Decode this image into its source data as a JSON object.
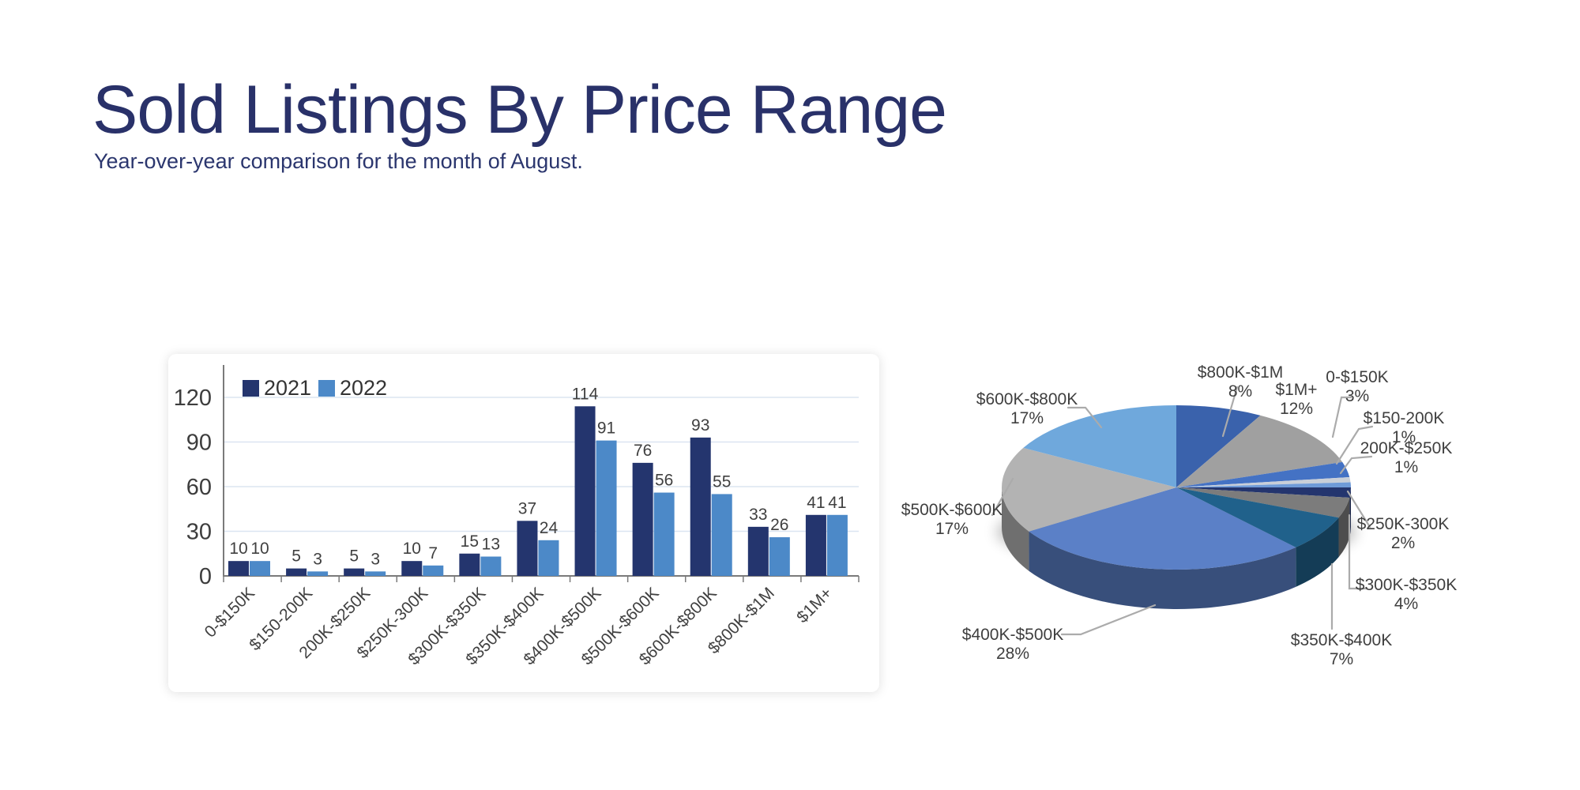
{
  "page": {
    "title": "Sold Listings By Price Range",
    "subtitle": "Year-over-year comparison for the month of August."
  },
  "colors": {
    "title": "#293169",
    "subtitle": "#2B366E",
    "axis": "#7A7A7A",
    "gridline": "#DBE5F1",
    "tick_label": "#3D3D3D",
    "value_label": "#404040",
    "legend_label": "#333333",
    "pie_label": "#3F3F3F",
    "leader_line": "#ABABAB",
    "series_2021": "#24356E",
    "series_2022": "#4C89C8"
  },
  "bar_chart": {
    "legend": [
      {
        "label": "2021",
        "color": "#24356E"
      },
      {
        "label": "2022",
        "color": "#4C89C8"
      }
    ],
    "y_ticks": [
      0,
      30,
      60,
      90,
      120
    ],
    "categories": [
      "0-$150K",
      "$150-200K",
      "200K-$250K",
      "$250K-300K",
      "$300K-$350K",
      "$350K-$400K",
      "$400K-$500K",
      "$500K-$600K",
      "$600K-$800K",
      "$800K-$1M",
      "$1M+"
    ],
    "series": [
      {
        "name": "2021",
        "values": [
          10,
          5,
          5,
          10,
          15,
          37,
          114,
          76,
          93,
          33,
          41
        ]
      },
      {
        "name": "2022",
        "values": [
          10,
          3,
          3,
          7,
          13,
          24,
          91,
          56,
          55,
          26,
          41
        ]
      }
    ]
  },
  "pie_chart": {
    "slices": [
      {
        "label": "$800K-$1M",
        "pct": 8,
        "color": "#3A62AC"
      },
      {
        "label": "$1M+",
        "pct": 12,
        "color": "#A0A0A0"
      },
      {
        "label": "0-$150K",
        "pct": 3,
        "color": "#4472C4"
      },
      {
        "label": "$150-200K",
        "pct": 1,
        "color": "#C9CFD8"
      },
      {
        "label": "200K-$250K",
        "pct": 1,
        "color": "#6F9BD8"
      },
      {
        "label": "$250K-300K",
        "pct": 2,
        "color": "#24356E"
      },
      {
        "label": "$300K-$350K",
        "pct": 4,
        "color": "#7C7C7C"
      },
      {
        "label": "$350K-$400K",
        "pct": 7,
        "color": "#20618B"
      },
      {
        "label": "$400K-$500K",
        "pct": 28,
        "color": "#5B80C7"
      },
      {
        "label": "$500K-$600K",
        "pct": 17,
        "color": "#B3B3B3"
      },
      {
        "label": "$600K-$800K",
        "pct": 17,
        "color": "#6FA8DC"
      }
    ]
  },
  "chart_data": [
    {
      "type": "bar",
      "title": "Sold Listings By Price Range",
      "subtitle": "Year-over-year comparison for the month of August.",
      "categories": [
        "0-$150K",
        "$150-200K",
        "200K-$250K",
        "$250K-300K",
        "$300K-$350K",
        "$350K-$400K",
        "$400K-$500K",
        "$500K-$600K",
        "$600K-$800K",
        "$800K-$1M",
        "$1M+"
      ],
      "series": [
        {
          "name": "2021",
          "values": [
            10,
            5,
            5,
            10,
            15,
            37,
            114,
            76,
            93,
            33,
            41
          ]
        },
        {
          "name": "2022",
          "values": [
            10,
            3,
            3,
            7,
            13,
            24,
            91,
            56,
            55,
            26,
            41
          ]
        }
      ],
      "xlabel": "",
      "ylabel": "",
      "ylim": [
        0,
        120
      ],
      "yticks": [
        0,
        30,
        60,
        90,
        120
      ],
      "grid": true,
      "legend_position": "top-left",
      "value_labels": true
    },
    {
      "type": "pie",
      "style": "3d",
      "labels": [
        "0-$150K",
        "$150-200K",
        "200K-$250K",
        "$250K-300K",
        "$300K-$350K",
        "$350K-$400K",
        "$400K-$500K",
        "$500K-$600K",
        "$600K-$800K",
        "$800K-$1M",
        "$1M+"
      ],
      "values": [
        3,
        1,
        1,
        2,
        4,
        7,
        28,
        17,
        17,
        8,
        12
      ],
      "unit": "%",
      "title": "",
      "legend_position": "none"
    }
  ]
}
